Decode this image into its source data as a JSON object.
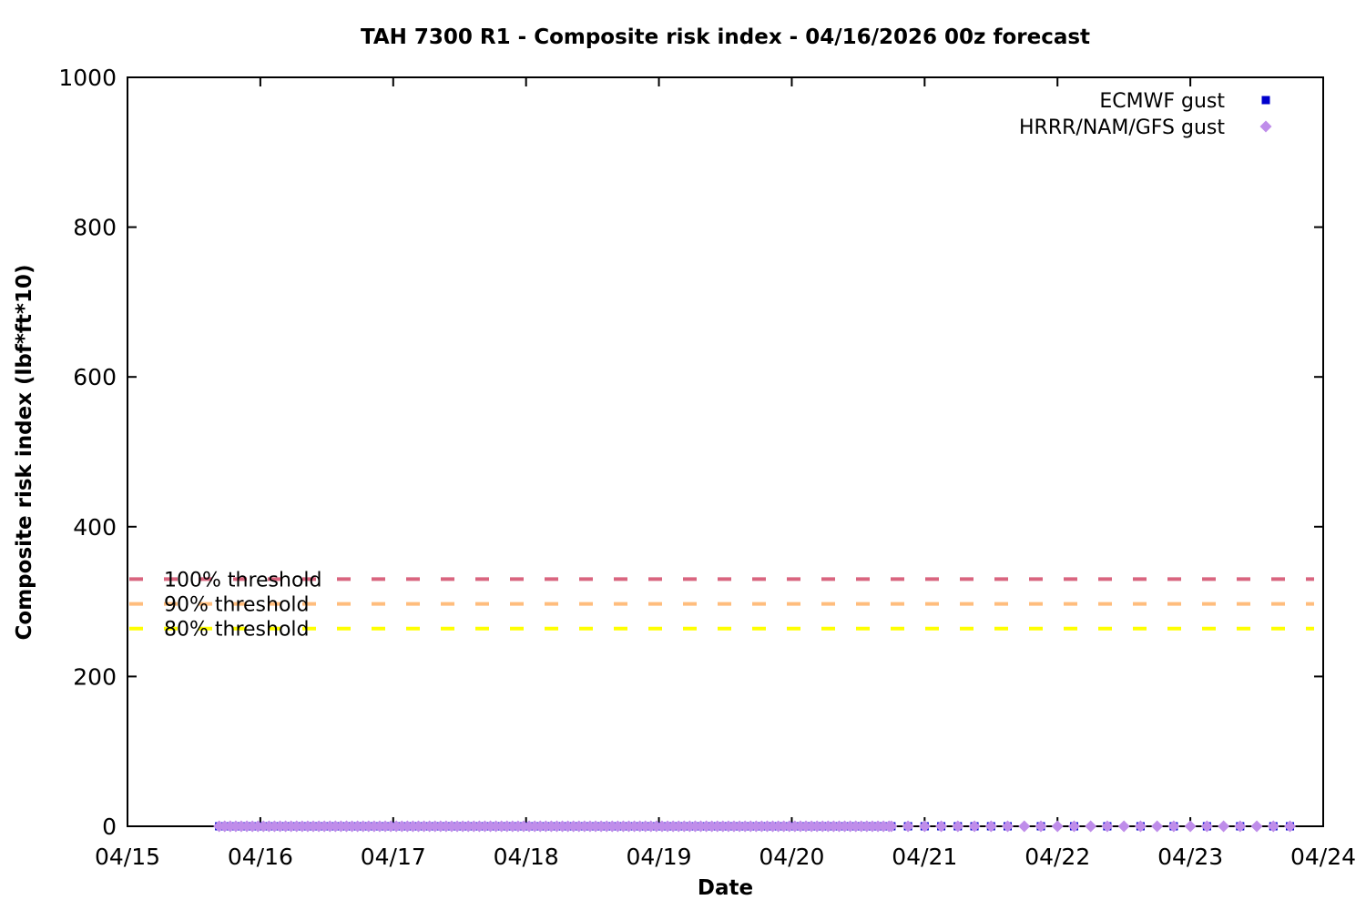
{
  "chart_data": {
    "type": "scatter",
    "title": "TAH 7300 R1 - Composite risk index - 04/16/2026 00z forecast",
    "xlabel": "Date",
    "ylabel": "Composite risk index (lbf*ft*10)",
    "x_tick_labels": [
      "04/15",
      "04/16",
      "04/17",
      "04/18",
      "04/19",
      "04/20",
      "04/21",
      "04/22",
      "04/23",
      "04/24"
    ],
    "x_axis_days_span": 9,
    "y_ticks": [
      0,
      200,
      400,
      600,
      800,
      1000
    ],
    "ylim": [
      0,
      1000
    ],
    "grid": false,
    "legend_position": "top-right-inside",
    "axis_color": "#000000",
    "thresholds": [
      {
        "label": "100% threshold",
        "value": 330,
        "color": "#d9657f",
        "style": "dashed"
      },
      {
        "label": "90% threshold",
        "value": 297,
        "color": "#ffbd7d",
        "style": "dashed"
      },
      {
        "label": "80% threshold",
        "value": 264,
        "color": "#ffff00",
        "style": "dashed"
      }
    ],
    "series": [
      {
        "name": "ECMWF gust",
        "marker": "square",
        "color": "#0000cd",
        "y_value": 0,
        "segments_days_after_0415": [
          {
            "start": 0.69,
            "end": 5.73,
            "step": 0.0416667
          },
          {
            "start": 5.75,
            "end": 6.625,
            "step": 0.125
          },
          {
            "start": 6.875,
            "end": 8.625,
            "step": 0.25
          },
          {
            "start": 8.75,
            "end": 8.75,
            "step": 1
          }
        ]
      },
      {
        "name": "HRRR/NAM/GFS gust",
        "marker": "diamond",
        "color": "#bf8dea",
        "y_value": 0,
        "segments_days_after_0415": [
          {
            "start": 0.69,
            "end": 5.73,
            "step": 0.0416667
          },
          {
            "start": 5.75,
            "end": 8.75,
            "step": 0.125
          }
        ]
      }
    ]
  }
}
